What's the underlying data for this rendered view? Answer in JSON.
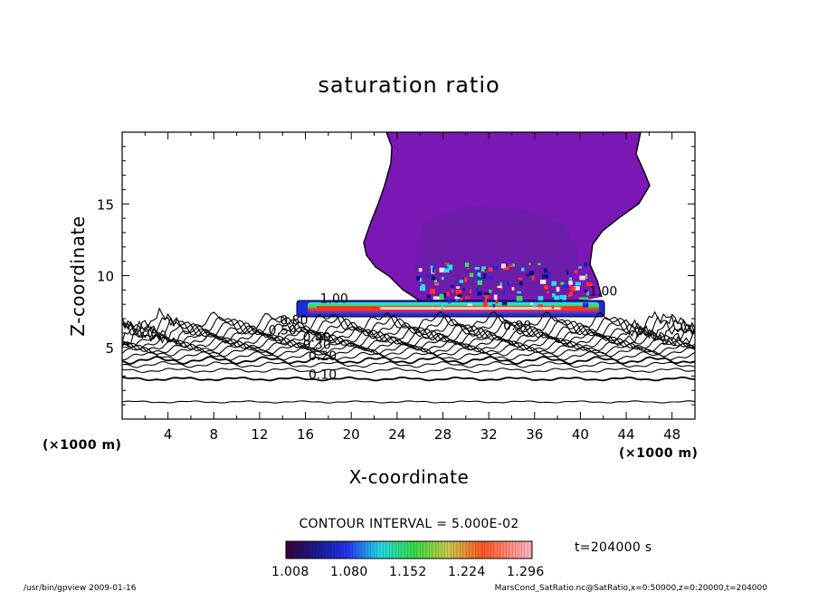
{
  "figure": {
    "title": "saturation ratio",
    "xlabel": "X-coordinate",
    "ylabel": "Z-coordinate",
    "x_unit": "(×1000 m)",
    "y_unit": "(×1000 m)",
    "contour_interval": "CONTOUR INTERVAL = 5.000E-02",
    "time_label": "t=204000 s",
    "footer_left": "/usr/bin/gpview   2009-01-16",
    "footer_right": "MarsCond_SatRatio.nc@SatRatio,x=0:50000,z=0:20000,t=204000"
  },
  "colors": {
    "high_fill": "#7b17b5",
    "high_fill_dark": "#6a1fa8",
    "cloud_blue": "#1a2bd9",
    "cloud_cyan": "#22e6e6",
    "cloud_green": "#33dd55",
    "cloud_red": "#ff3322",
    "contour": "#000000"
  },
  "chart_data": {
    "type": "contour",
    "title": "saturation ratio",
    "xlabel": "X-coordinate",
    "ylabel": "Z-coordinate",
    "xlim": [
      0,
      50
    ],
    "ylim": [
      0,
      20
    ],
    "x_ticks": [
      4,
      8,
      12,
      16,
      20,
      24,
      28,
      32,
      36,
      40,
      44,
      48
    ],
    "y_ticks": [
      5,
      10,
      15
    ],
    "contour_interval": 0.05,
    "labeled_contours": [
      {
        "label": "1.00",
        "x": 18.5,
        "z": 8.1
      },
      {
        "label": "1.00",
        "x": 42.0,
        "z": 8.6
      },
      {
        "label": "0.90",
        "x": 34.5,
        "z": 6.2
      },
      {
        "label": "0.80",
        "x": 15.0,
        "z": 6.6
      },
      {
        "label": "0.50",
        "x": 14.0,
        "z": 5.9
      },
      {
        "label": "0.40",
        "x": 17.0,
        "z": 5.4
      },
      {
        "label": "0.30",
        "x": 17.0,
        "z": 4.9
      },
      {
        "label": "0.20",
        "x": 17.5,
        "z": 4.1
      },
      {
        "label": "0.10",
        "x": 17.5,
        "z": 2.8
      }
    ],
    "colorbar": {
      "tick_labels": [
        "1.008",
        "1.080",
        "1.152",
        "1.224",
        "1.296"
      ],
      "min": 1.008,
      "max": 1.296
    }
  }
}
